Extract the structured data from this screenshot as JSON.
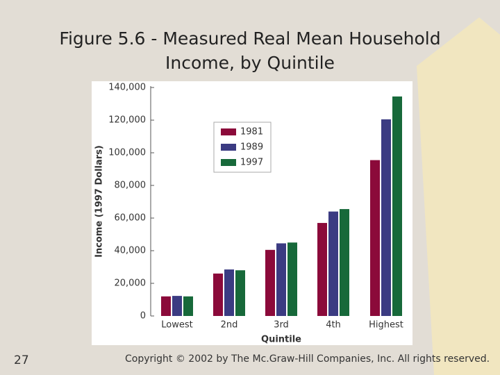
{
  "page_number": "27",
  "copyright": "Copyright © 2002 by The Mc.Graw-Hill Companies, Inc.  All rights reserved.",
  "chart_data": {
    "type": "bar",
    "title": "Figure 5.6 - Measured Real Mean Household Income, by Quintile",
    "x_label": "Quintile",
    "y_label": "Income (1997 Dollars)",
    "categories": [
      "Lowest",
      "2nd",
      "3rd",
      "4th",
      "Highest"
    ],
    "series": [
      {
        "name": "1981",
        "color": "#8b0a3a",
        "values": [
          12000,
          26000,
          40500,
          57000,
          95500
        ]
      },
      {
        "name": "1989",
        "color": "#3b3b82",
        "values": [
          12300,
          28500,
          44500,
          64000,
          120500
        ]
      },
      {
        "name": "1997",
        "color": "#17693a",
        "values": [
          12000,
          28000,
          45000,
          65500,
          134500
        ]
      }
    ],
    "ylim": [
      0,
      140000
    ],
    "yticks": [
      0,
      {
        "value": 20000,
        "label": "20,000"
      },
      {
        "value": 40000,
        "label": "40,000"
      },
      {
        "value": 60000,
        "label": "60,000"
      },
      {
        "value": 80000,
        "label": "80,000"
      },
      {
        "value": 100000,
        "label": "100,000"
      },
      {
        "value": 120000,
        "label": "120,000"
      },
      {
        "value": 140000,
        "label": "140,000"
      }
    ],
    "legend": "upper-left"
  }
}
